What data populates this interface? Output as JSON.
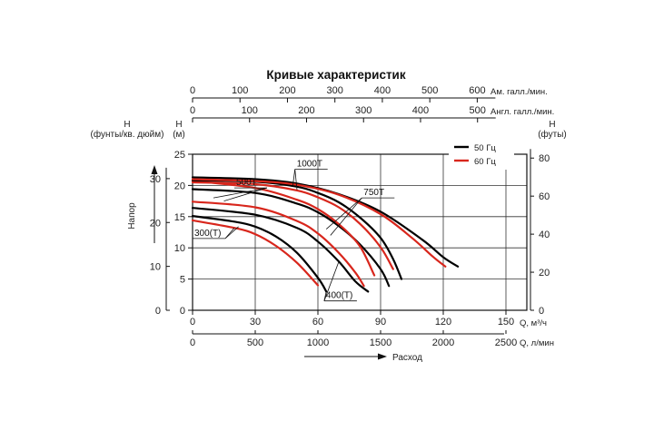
{
  "chart_data": {
    "type": "line",
    "title": "Кривые характеристик",
    "xlabel": "Расход",
    "ylabel": "Напор",
    "x_unit": "Q, м³/ч",
    "xlim": [
      0,
      160
    ],
    "ylim": [
      0,
      25
    ],
    "grid": true,
    "legend_position": "top-right",
    "x_ticks": [
      0,
      30,
      60,
      90,
      120,
      150
    ],
    "y_ticks": [
      0,
      5,
      10,
      15,
      20,
      25
    ],
    "top_axis_us": {
      "label": "Ам. галл./мин.",
      "ticks": [
        0,
        100,
        200,
        300,
        400,
        500,
        600
      ],
      "m3h_per_unit": 0.2271
    },
    "top_axis_uk": {
      "label": "Англ. галл./мин.",
      "ticks": [
        0,
        100,
        200,
        300,
        400,
        500
      ],
      "m3h_per_unit": 0.2728
    },
    "bottom_axis_lpm": {
      "label": "Q, л/мин",
      "ticks": [
        0,
        500,
        1000,
        1500,
        2000,
        2500
      ],
      "m3h_per_unit": 0.06
    },
    "left_axis_psi": {
      "label_line1": "Н",
      "label_line2": "(фунты/кв. дюйм)",
      "ticks": [
        0,
        10,
        20,
        30
      ],
      "m_per_unit": 0.7031
    },
    "left_axis_m": {
      "label_line1": "Н",
      "label_line2": "(м)"
    },
    "right_axis_ft": {
      "label_line1": "Н",
      "label_line2": "(футы)",
      "ticks": [
        0,
        20,
        40,
        60,
        80
      ],
      "m_per_unit": 0.3048
    },
    "legend": [
      {
        "label": "50 Гц",
        "color": "#000000"
      },
      {
        "label": "60 Гц",
        "color": "#d8261c"
      }
    ],
    "series": [
      {
        "model": "300(T)",
        "freq": "50 Гц",
        "color": "#000000",
        "points": [
          [
            0,
            15.1
          ],
          [
            20,
            14.2
          ],
          [
            30,
            13.4
          ],
          [
            40,
            11.8
          ],
          [
            50,
            9.2
          ],
          [
            60,
            5.2
          ],
          [
            64,
            3.0
          ]
        ]
      },
      {
        "model": "300(T)",
        "freq": "60 Гц",
        "color": "#d8261c",
        "points": [
          [
            0,
            14.4
          ],
          [
            20,
            13.2
          ],
          [
            30,
            12.2
          ],
          [
            40,
            10.3
          ],
          [
            50,
            7.6
          ],
          [
            60,
            4.0
          ]
        ]
      },
      {
        "model": "400(T)",
        "freq": "50 Гц",
        "color": "#000000",
        "points": [
          [
            0,
            16.4
          ],
          [
            30,
            15.3
          ],
          [
            50,
            13.2
          ],
          [
            60,
            11.0
          ],
          [
            70,
            7.8
          ],
          [
            78,
            4.6
          ],
          [
            84,
            3.0
          ]
        ]
      },
      {
        "model": "400(T)",
        "freq": "60 Гц",
        "color": "#d8261c",
        "points": [
          [
            0,
            17.4
          ],
          [
            30,
            16.5
          ],
          [
            50,
            14.3
          ],
          [
            60,
            12.3
          ],
          [
            70,
            9.2
          ],
          [
            78,
            6.0
          ],
          [
            82,
            3.9
          ]
        ]
      },
      {
        "model": "500T",
        "freq": "50 Гц",
        "color": "#000000",
        "points": [
          [
            0,
            19.4
          ],
          [
            30,
            18.8
          ],
          [
            50,
            17.1
          ],
          [
            60,
            15.7
          ],
          [
            70,
            13.5
          ],
          [
            80,
            10.6
          ],
          [
            90,
            6.6
          ],
          [
            94,
            3.9
          ]
        ]
      },
      {
        "model": "500T",
        "freq": "60 Гц",
        "color": "#d8261c",
        "points": [
          [
            0,
            20.7
          ],
          [
            30,
            19.6
          ],
          [
            50,
            17.7
          ],
          [
            60,
            16.2
          ],
          [
            70,
            13.8
          ],
          [
            80,
            10.3
          ],
          [
            87,
            5.6
          ]
        ]
      },
      {
        "model": "750T",
        "freq": "50 Гц",
        "color": "#000000",
        "points": [
          [
            0,
            20.8
          ],
          [
            30,
            20.6
          ],
          [
            50,
            19.8
          ],
          [
            60,
            18.8
          ],
          [
            70,
            17.3
          ],
          [
            80,
            14.9
          ],
          [
            90,
            11.6
          ],
          [
            96,
            8.2
          ],
          [
            100,
            5.0
          ]
        ]
      },
      {
        "model": "750T",
        "freq": "60 Гц",
        "color": "#d8261c",
        "points": [
          [
            0,
            20.5
          ],
          [
            30,
            20.2
          ],
          [
            50,
            19.2
          ],
          [
            60,
            18.1
          ],
          [
            70,
            16.5
          ],
          [
            80,
            13.9
          ],
          [
            90,
            10.1
          ],
          [
            96,
            6.6
          ]
        ]
      },
      {
        "model": "1000T",
        "freq": "50 Гц",
        "color": "#000000",
        "points": [
          [
            0,
            21.3
          ],
          [
            30,
            21.0
          ],
          [
            50,
            20.3
          ],
          [
            70,
            18.6
          ],
          [
            90,
            15.8
          ],
          [
            110,
            11.3
          ],
          [
            120,
            8.5
          ],
          [
            127,
            7.0
          ]
        ]
      },
      {
        "model": "1000T",
        "freq": "60 Гц",
        "color": "#d8261c",
        "points": [
          [
            0,
            21.0
          ],
          [
            30,
            20.7
          ],
          [
            50,
            20.1
          ],
          [
            70,
            18.5
          ],
          [
            90,
            15.4
          ],
          [
            105,
            11.6
          ],
          [
            115,
            8.6
          ],
          [
            121,
            7.0
          ]
        ]
      }
    ],
    "annotations": [
      {
        "text": "300(T)",
        "anchor": [
          0,
          11.5
        ],
        "targets": [
          [
            22,
            13.4
          ],
          [
            20,
            13.2
          ]
        ]
      },
      {
        "text": "400(T)",
        "anchor": [
          63,
          1.5
        ],
        "targets": [
          [
            70,
            7.8
          ],
          [
            64,
            3.0
          ]
        ]
      },
      {
        "text": "500T",
        "anchor": [
          20,
          19.6
        ],
        "targets": [
          [
            15,
            17.5
          ],
          [
            10,
            18.0
          ]
        ]
      },
      {
        "text": "750T",
        "anchor": [
          81,
          18.0
        ],
        "targets": [
          [
            64,
            13.0
          ],
          [
            66,
            12.0
          ]
        ]
      },
      {
        "text": "1000T",
        "anchor": [
          49,
          22.6
        ],
        "targets": [
          [
            48,
            20.0
          ],
          [
            50,
            19.3
          ]
        ]
      }
    ]
  }
}
